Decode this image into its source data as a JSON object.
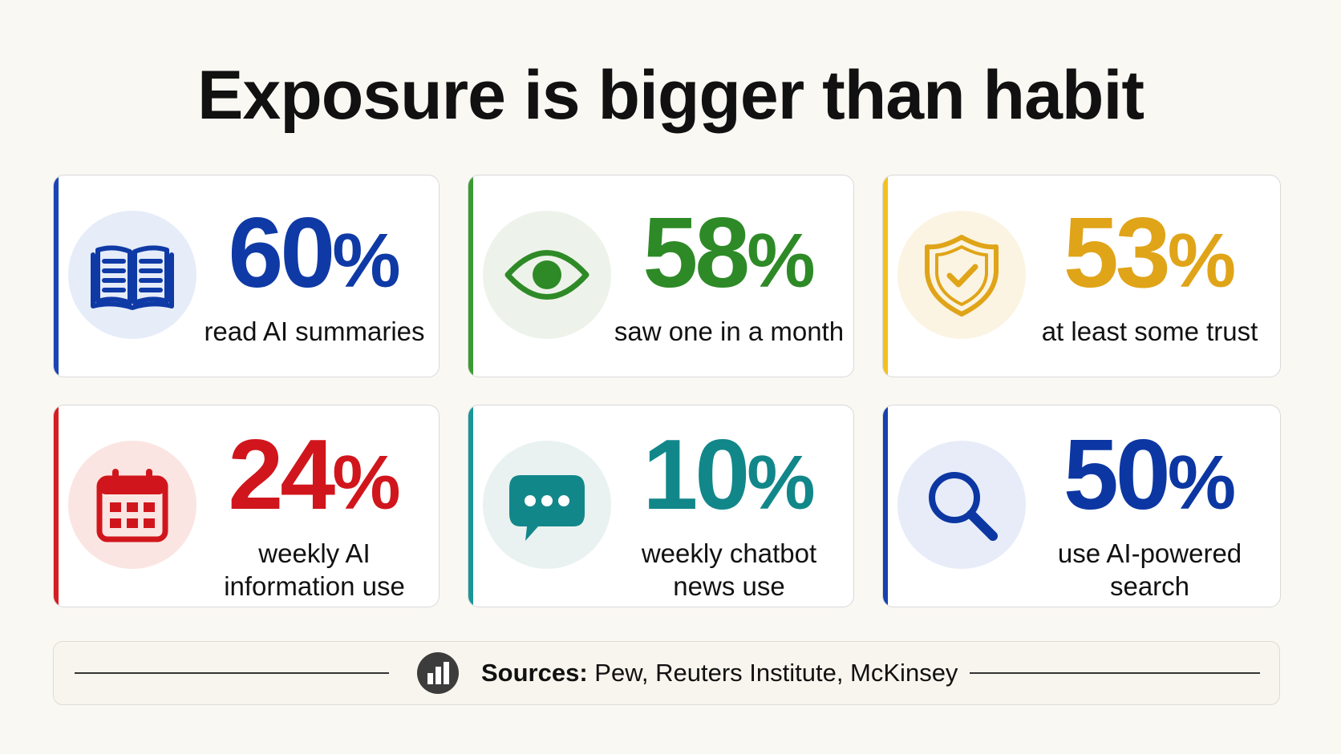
{
  "title": "Exposure is bigger than habit",
  "colors": {
    "blue": "#0f3aa6",
    "green": "#2e8a27",
    "gold": "#e0a418",
    "red": "#d0161c",
    "teal": "#12878a",
    "navy": "#0c37a3"
  },
  "cards": [
    {
      "value": "60",
      "unit": "%",
      "label_line1": "read AI summaries",
      "label_line2": "",
      "icon": "open-book-icon",
      "color": "#0f3aa6",
      "bar_color": "#1a45b5",
      "circle_bg": "#e6ecf8"
    },
    {
      "value": "58",
      "unit": "%",
      "label_line1": "saw one in a month",
      "label_line2": "",
      "icon": "eye-icon",
      "color": "#2e8a27",
      "bar_color": "#3c9a30",
      "circle_bg": "#edf3ea"
    },
    {
      "value": "53",
      "unit": "%",
      "label_line1": "at least some trust",
      "label_line2": "",
      "icon": "shield-check-icon",
      "color": "#e0a418",
      "bar_color": "#f2c21b",
      "circle_bg": "#fbf4e2"
    },
    {
      "value": "24",
      "unit": "%",
      "label_line1": "weekly AI",
      "label_line2": "information use",
      "icon": "calendar-icon",
      "color": "#d0161c",
      "bar_color": "#d51e24",
      "circle_bg": "#fbe5e2"
    },
    {
      "value": "10",
      "unit": "%",
      "label_line1": "weekly chatbot",
      "label_line2": "news use",
      "icon": "chat-bubble-icon",
      "color": "#12878a",
      "bar_color": "#1a9598",
      "circle_bg": "#e9f2f0"
    },
    {
      "value": "50",
      "unit": "%",
      "label_line1": "use AI-powered",
      "label_line2": "search",
      "icon": "search-icon",
      "color": "#0c37a3",
      "bar_color": "#1742ad",
      "circle_bg": "#e7ecf8"
    }
  ],
  "sources": {
    "label": "Sources:",
    "text": "Pew, Reuters Institute, McKinsey",
    "icon": "bar-chart-icon"
  }
}
